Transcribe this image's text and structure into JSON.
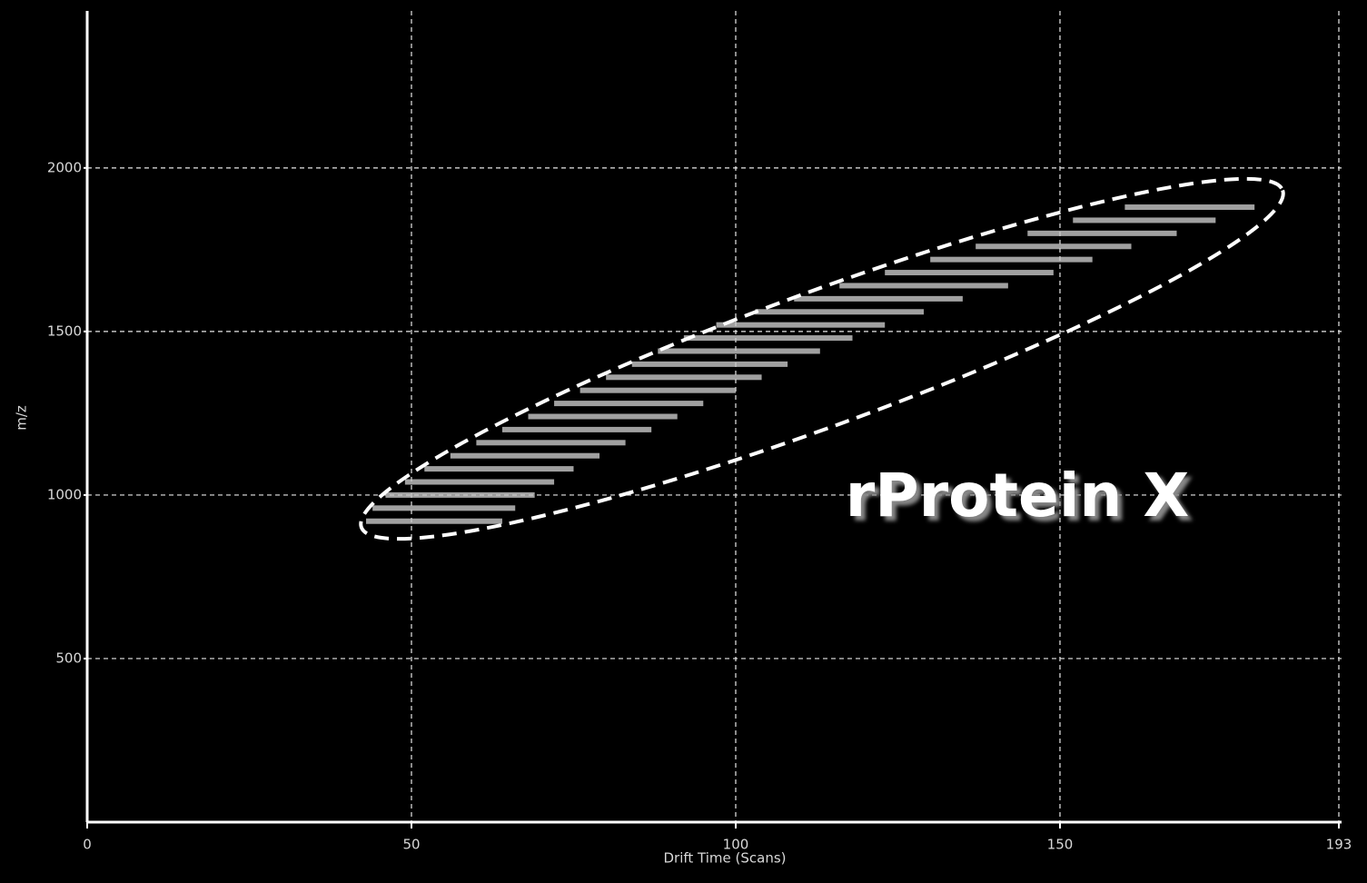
{
  "chart_data": {
    "type": "driftscope",
    "x_label": "Drift Time (Scans)",
    "y_label": "m/z",
    "annotation": "rProtein X",
    "xlim": [
      0,
      193
    ],
    "xticks": [
      0,
      50,
      100,
      150,
      193
    ],
    "ylim": [
      0,
      2480
    ],
    "yticks": [
      500,
      1000,
      1500,
      2000
    ],
    "grid": true,
    "color": "#c8c8c8",
    "bands": {
      "mz": [
        920,
        960,
        1000,
        1040,
        1080,
        1120,
        1160,
        1200,
        1240,
        1280,
        1320,
        1360,
        1400,
        1440,
        1480,
        1520,
        1560,
        1600,
        1640,
        1680,
        1720,
        1760,
        1800,
        1840,
        1880
      ],
      "x_start": [
        43,
        44,
        46,
        49,
        52,
        56,
        60,
        64,
        68,
        72,
        76,
        80,
        84,
        88,
        92,
        97,
        103,
        109,
        116,
        123,
        130,
        137,
        145,
        152,
        160
      ],
      "x_end": [
        64,
        66,
        69,
        72,
        75,
        79,
        83,
        87,
        91,
        95,
        100,
        104,
        108,
        113,
        118,
        123,
        129,
        135,
        142,
        149,
        155,
        161,
        168,
        174,
        180
      ]
    }
  }
}
